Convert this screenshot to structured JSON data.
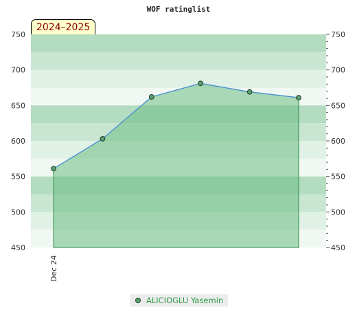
{
  "chart_data": {
    "type": "area",
    "title": "WOF ratinglist",
    "season_badge": "2024–2025",
    "ylim": [
      450,
      750
    ],
    "y_ticks": [
      450,
      500,
      550,
      600,
      650,
      700,
      750
    ],
    "x_tick_label": "Dec 24",
    "series": [
      {
        "name": "ALICIOGLU Yasemin",
        "values": [
          561,
          603,
          662,
          681,
          669,
          661
        ]
      }
    ],
    "legend_position": "bottom-center",
    "colors": {
      "line": "#4c8ed8",
      "fill": "#6cbd83",
      "marker": "#5a9e6f",
      "legend_text": "#2e9a4a",
      "band_dark": "#b3dcc0",
      "band_mid": "#c9e6d3",
      "band_light": "#e0f1e6",
      "band_pale": "#f1f8f3"
    },
    "grid": true
  }
}
